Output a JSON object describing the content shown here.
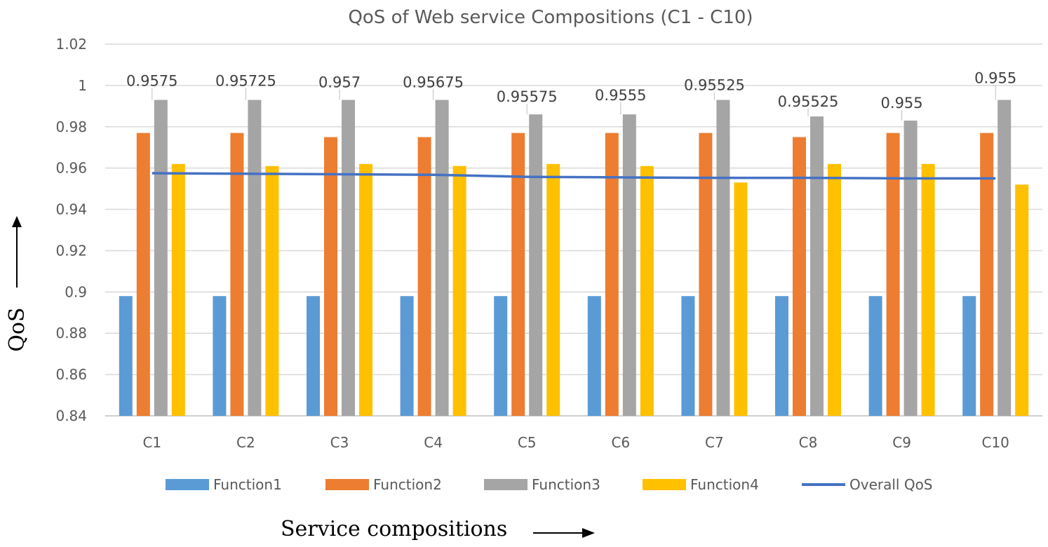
{
  "chart_data": {
    "type": "bar",
    "title": "QoS of Web service  Compositions (C1 - C10)",
    "xlabel": "Service compositions",
    "ylabel": "QoS",
    "ylim": [
      0.84,
      1.02
    ],
    "yticks": [
      "0.84",
      "0.86",
      "0.88",
      "0.9",
      "0.92",
      "0.94",
      "0.96",
      "0.98",
      "1",
      "1.02"
    ],
    "grid": true,
    "legend_position": "bottom",
    "categories": [
      "C1",
      "C2",
      "C3",
      "C4",
      "C5",
      "C6",
      "C7",
      "C8",
      "C9",
      "C10"
    ],
    "series": [
      {
        "name": "Function1",
        "type": "bar",
        "color": "#5B9BD5",
        "values": [
          0.898,
          0.898,
          0.898,
          0.898,
          0.898,
          0.898,
          0.898,
          0.898,
          0.898,
          0.898
        ]
      },
      {
        "name": "Function2",
        "type": "bar",
        "color": "#ED7D31",
        "values": [
          0.977,
          0.977,
          0.975,
          0.975,
          0.977,
          0.977,
          0.977,
          0.975,
          0.977,
          0.977
        ]
      },
      {
        "name": "Function3",
        "type": "bar",
        "color": "#A5A5A5",
        "values": [
          0.993,
          0.993,
          0.993,
          0.993,
          0.986,
          0.986,
          0.993,
          0.985,
          0.983,
          0.993
        ]
      },
      {
        "name": "Function4",
        "type": "bar",
        "color": "#FFC000",
        "values": [
          0.962,
          0.961,
          0.962,
          0.961,
          0.962,
          0.961,
          0.953,
          0.962,
          0.962,
          0.952
        ]
      },
      {
        "name": "Overall QoS",
        "type": "line",
        "color": "#4472C4",
        "values": [
          0.9575,
          0.95725,
          0.957,
          0.95675,
          0.95575,
          0.9555,
          0.95525,
          0.95525,
          0.955,
          0.955
        ],
        "labels": [
          "0.9575",
          "0.95725",
          "0.957",
          "0.95675",
          "0.95575",
          "0.9555",
          "0.95525",
          "0.95525",
          "0.955",
          "0.955"
        ]
      }
    ]
  }
}
